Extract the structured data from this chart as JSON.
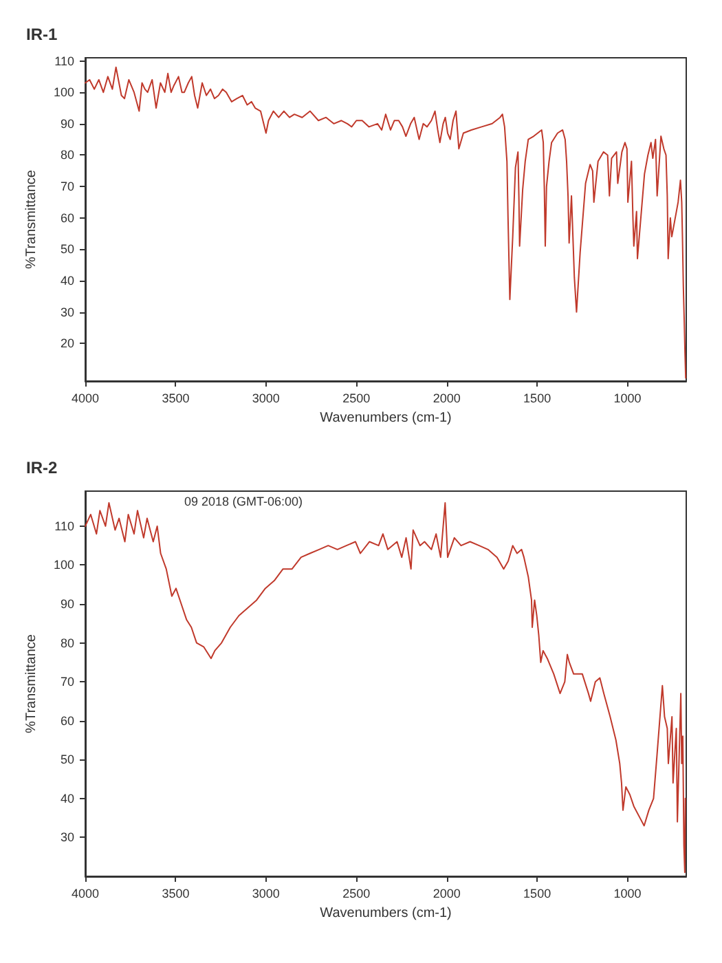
{
  "chart_data": [
    {
      "type": "line",
      "title": "IR-1",
      "xlabel": "Wavenumbers (cm-1)",
      "ylabel": "%Transmittance",
      "color": "#c0392b",
      "marker": "none",
      "xlim": [
        4000,
        675
      ],
      "ylim": [
        8,
        111
      ],
      "xticks": [
        4000,
        3500,
        3000,
        2500,
        2000,
        1500,
        1000
      ],
      "yticks": [
        20,
        30,
        40,
        50,
        60,
        70,
        80,
        90,
        100,
        110
      ],
      "x": [
        4000,
        3976,
        3950,
        3925,
        3900,
        3875,
        3850,
        3830,
        3800,
        3783,
        3759,
        3730,
        3702,
        3686,
        3670,
        3655,
        3630,
        3608,
        3584,
        3560,
        3543,
        3525,
        3511,
        3484,
        3465,
        3452,
        3430,
        3411,
        3395,
        3378,
        3353,
        3330,
        3307,
        3285,
        3263,
        3240,
        3220,
        3190,
        3162,
        3130,
        3104,
        3080,
        3060,
        3030,
        3000,
        2986,
        2959,
        2930,
        2901,
        2870,
        2843,
        2800,
        2756,
        2710,
        2668,
        2625,
        2583,
        2550,
        2526,
        2500,
        2468,
        2430,
        2383,
        2360,
        2338,
        2311,
        2290,
        2266,
        2245,
        2226,
        2200,
        2180,
        2153,
        2130,
        2109,
        2085,
        2065,
        2050,
        2038,
        2020,
        2008,
        1995,
        1981,
        1965,
        1949,
        1933,
        1908,
        1864,
        1807,
        1749,
        1705,
        1692,
        1680,
        1667,
        1661,
        1651,
        1635,
        1620,
        1606,
        1601,
        1597,
        1580,
        1566,
        1549,
        1519,
        1475,
        1466,
        1460,
        1455,
        1448,
        1434,
        1420,
        1387,
        1359,
        1345,
        1337,
        1329,
        1323,
        1310,
        1302,
        1294,
        1282,
        1262,
        1232,
        1207,
        1193,
        1186,
        1163,
        1133,
        1110,
        1100,
        1088,
        1061,
        1054,
        1031,
        1014,
        1003,
        998,
        978,
        970,
        965,
        950,
        945,
        906,
        887,
        870,
        860,
        845,
        836,
        815,
        799,
        787,
        780,
        775,
        763,
        755,
        720,
        707,
        700,
        696,
        691,
        686,
        682,
        678
      ],
      "values": [
        103,
        104,
        101,
        104,
        100,
        105,
        101,
        108,
        99,
        98,
        104,
        100,
        94,
        103,
        101,
        100,
        104,
        95,
        103,
        100,
        106,
        100,
        102,
        105,
        100,
        100,
        103,
        105,
        99,
        95,
        103,
        99,
        101,
        98,
        99,
        101,
        100,
        97,
        98,
        99,
        96,
        97,
        95,
        94,
        87,
        91,
        94,
        92,
        94,
        92,
        93,
        92,
        94,
        91,
        92,
        90,
        91,
        90,
        89,
        91,
        91,
        89,
        90,
        88,
        93,
        88,
        91,
        91,
        89,
        86,
        90,
        92,
        85,
        90,
        89,
        91,
        94,
        88,
        84,
        90,
        92,
        87,
        85,
        91,
        94,
        82,
        87,
        88,
        89,
        90,
        92,
        93,
        89,
        78,
        60,
        34,
        54,
        76,
        81,
        67,
        51,
        69,
        78,
        85,
        86,
        88,
        84,
        69,
        51,
        70,
        78,
        84,
        87,
        88,
        85,
        78,
        67,
        52,
        67,
        54,
        41,
        30,
        49,
        71,
        77,
        75,
        65,
        78,
        81,
        80,
        67,
        79,
        81,
        71,
        81,
        84,
        82,
        65,
        78,
        60,
        51,
        62,
        47,
        74,
        80,
        84,
        79,
        85,
        67,
        86,
        82,
        80,
        67,
        47,
        60,
        54,
        65,
        72,
        65,
        54,
        38,
        27,
        17,
        9
      ]
    },
    {
      "type": "line",
      "title": "IR-2",
      "xlabel": "Wavenumbers (cm-1)",
      "ylabel": "%Transmittance",
      "color": "#c0392b",
      "marker": "none",
      "xlim": [
        4000,
        675
      ],
      "ylim": [
        20,
        119
      ],
      "xticks": [
        4000,
        3500,
        3000,
        2500,
        2000,
        1500,
        1000
      ],
      "yticks": [
        30,
        40,
        50,
        60,
        70,
        80,
        90,
        100,
        110
      ],
      "annotations": [
        "09 2018 (GMT-06:00)"
      ],
      "x": [
        4000,
        3970,
        3938,
        3919,
        3888,
        3869,
        3835,
        3813,
        3781,
        3762,
        3730,
        3711,
        3677,
        3658,
        3624,
        3602,
        3583,
        3552,
        3521,
        3498,
        3469,
        3440,
        3413,
        3384,
        3345,
        3304,
        3283,
        3246,
        3198,
        3150,
        3101,
        3052,
        3004,
        2954,
        2906,
        2856,
        2806,
        2757,
        2706,
        2656,
        2605,
        2555,
        2505,
        2478,
        2428,
        2377,
        2353,
        2326,
        2275,
        2249,
        2225,
        2198,
        2186,
        2148,
        2123,
        2085,
        2059,
        2034,
        2009,
        1995,
        1958,
        1921,
        1871,
        1821,
        1772,
        1722,
        1685,
        1660,
        1635,
        1611,
        1586,
        1573,
        1549,
        1531,
        1527,
        1514,
        1502,
        1491,
        1480,
        1467,
        1444,
        1408,
        1373,
        1347,
        1333,
        1322,
        1298,
        1250,
        1216,
        1204,
        1178,
        1153,
        1131,
        1096,
        1064,
        1043,
        1033,
        1025,
        1009,
        987,
        965,
        931,
        908,
        882,
        856,
        837,
        807,
        795,
        780,
        774,
        754,
        748,
        730,
        724,
        705,
        700,
        694,
        688,
        683,
        680
      ],
      "values": [
        110,
        113,
        108,
        114,
        110,
        116,
        109,
        112,
        106,
        113,
        108,
        114,
        107,
        112,
        106,
        110,
        103,
        99,
        92,
        94,
        90,
        86,
        84,
        80,
        79,
        76,
        78,
        80,
        84,
        87,
        89,
        91,
        94,
        96,
        99,
        99,
        102,
        103,
        104,
        105,
        104,
        105,
        106,
        103,
        106,
        105,
        108,
        104,
        106,
        102,
        107,
        99,
        109,
        105,
        106,
        104,
        108,
        102,
        116,
        102,
        107,
        105,
        106,
        105,
        104,
        102,
        99,
        101,
        105,
        103,
        104,
        102,
        97,
        91,
        84,
        91,
        87,
        82,
        75,
        78,
        76,
        72,
        67,
        70,
        77,
        75,
        72,
        72,
        67,
        65,
        70,
        71,
        67,
        61,
        55,
        49,
        44,
        37,
        43,
        41,
        38,
        35,
        33,
        37,
        40,
        51,
        69,
        61,
        58,
        49,
        61,
        44,
        58,
        34,
        67,
        49,
        56,
        28,
        21,
        40
      ]
    }
  ]
}
